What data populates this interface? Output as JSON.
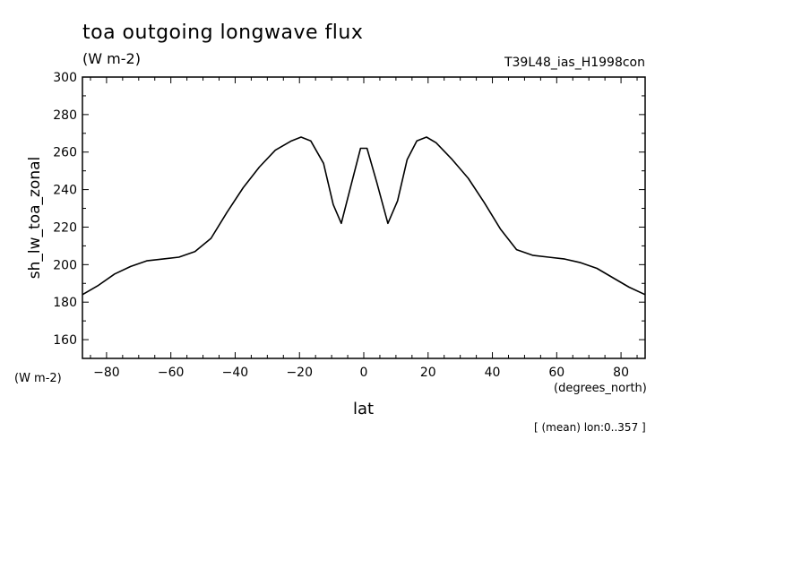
{
  "chart_data": {
    "type": "line",
    "title": "toa outgoing longwave flux",
    "subtitle": "(W m-2)",
    "experiment": "T39L48_ias_H1998con",
    "ylabel": "sh_lw_toa_zonal",
    "y_units": "(W m-2)",
    "xlabel": "lat",
    "x_units": "(degrees_north)",
    "footnote": "[ (mean) lon:0..357 ]",
    "xlim": [
      -87.5,
      87.5
    ],
    "ylim": [
      150,
      300
    ],
    "xticks": [
      -80,
      -60,
      -40,
      -20,
      0,
      20,
      40,
      60,
      80
    ],
    "yticks": [
      160,
      180,
      200,
      220,
      240,
      260,
      280,
      300
    ],
    "grid": false,
    "series": [
      {
        "x": [
          -87.5,
          -82.5,
          -77.5,
          -72.5,
          -67.5,
          -62.5,
          -57.5,
          -52.5,
          -47.5,
          -42.5,
          -37.5,
          -32.5,
          -27.5,
          -22.5,
          -19.5,
          -16.5,
          -12.5,
          -9.5,
          -7.0,
          -4.0,
          -1.0,
          1.0,
          4.0,
          7.5,
          10.5,
          13.5,
          16.5,
          19.5,
          22.5,
          27.5,
          32.5,
          37.5,
          42.5,
          47.5,
          52.5,
          57.5,
          62.5,
          67.5,
          72.5,
          77.5,
          82.5,
          87.5
        ],
        "values": [
          184,
          189,
          195,
          199,
          202,
          203,
          204,
          207,
          214,
          228,
          241,
          252,
          261,
          266,
          268,
          266,
          254,
          232,
          222,
          242,
          262,
          262,
          244,
          222,
          234,
          256,
          266,
          268,
          265,
          256,
          246,
          233,
          219,
          208,
          205,
          204,
          203,
          201,
          198,
          193,
          188,
          184
        ]
      }
    ]
  }
}
